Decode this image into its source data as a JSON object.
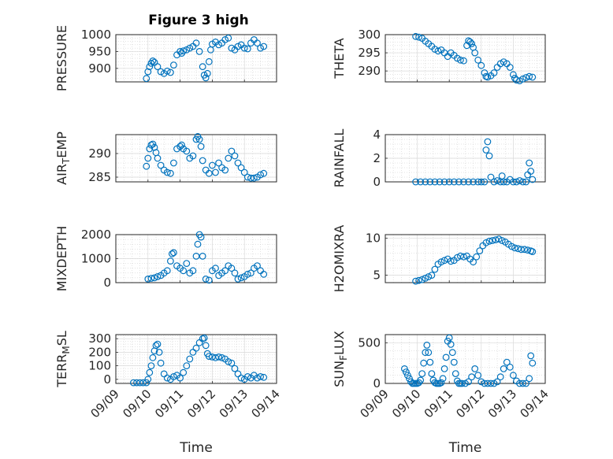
{
  "figure_title": "Figure 3 high",
  "chart_data": [
    {
      "id": "pressure",
      "type": "scatter",
      "title": "Figure 3 high",
      "ylabel": "PRESSURE",
      "xlabel": "",
      "xlim": [
        0,
        5
      ],
      "ylim": [
        860,
        1000
      ],
      "yticks": [
        900,
        950,
        1000
      ],
      "ytick_labels": [
        "900",
        "950",
        "1000"
      ],
      "x": [
        0.95,
        1.0,
        1.05,
        1.1,
        1.15,
        1.2,
        1.3,
        1.4,
        1.5,
        1.6,
        1.7,
        1.8,
        1.9,
        2.0,
        2.05,
        2.1,
        2.2,
        2.3,
        2.4,
        2.5,
        2.6,
        2.7,
        2.75,
        2.8,
        2.85,
        2.9,
        2.95,
        3.0,
        3.1,
        3.2,
        3.3,
        3.4,
        3.5,
        3.6,
        3.7,
        3.8,
        3.9,
        4.0,
        4.1,
        4.2,
        4.3,
        4.4,
        4.5,
        4.6
      ],
      "y": [
        870,
        890,
        905,
        915,
        922,
        918,
        905,
        890,
        885,
        892,
        888,
        910,
        940,
        950,
        945,
        952,
        955,
        960,
        965,
        975,
        950,
        905,
        880,
        872,
        885,
        920,
        955,
        972,
        978,
        970,
        975,
        985,
        990,
        960,
        955,
        965,
        970,
        960,
        958,
        975,
        985,
        975,
        960,
        965
      ]
    },
    {
      "id": "theta",
      "type": "scatter",
      "title": "",
      "ylabel": "THETA",
      "xlabel": "",
      "xlim": [
        0,
        5
      ],
      "ylim": [
        287,
        300
      ],
      "yticks": [
        290,
        295,
        300
      ],
      "ytick_labels": [
        "290",
        "295",
        "300"
      ],
      "x": [
        0.95,
        1.05,
        1.15,
        1.25,
        1.35,
        1.45,
        1.55,
        1.65,
        1.75,
        1.85,
        1.95,
        2.05,
        2.15,
        2.25,
        2.35,
        2.45,
        2.55,
        2.6,
        2.65,
        2.7,
        2.75,
        2.8,
        2.9,
        3.0,
        3.1,
        3.15,
        3.2,
        3.3,
        3.4,
        3.5,
        3.6,
        3.7,
        3.8,
        3.9,
        4.0,
        4.05,
        4.1,
        4.2,
        4.3,
        4.4,
        4.5,
        4.6
      ],
      "y": [
        299.5,
        299.3,
        299,
        298.2,
        297.5,
        296.8,
        296,
        295.5,
        295.8,
        295,
        294,
        295,
        294.3,
        293.5,
        293,
        292.8,
        297,
        298.3,
        298,
        297.5,
        296.5,
        295,
        293,
        291.5,
        289.5,
        288.5,
        288.3,
        288.7,
        289.5,
        291,
        292,
        292.5,
        292,
        291,
        289,
        288,
        287.5,
        287.3,
        287.8,
        288.2,
        288.5,
        288.3
      ]
    },
    {
      "id": "air_temp",
      "type": "scatter",
      "title": "",
      "ylabel": "AIR_TEMP",
      "xlabel": "",
      "xlim": [
        0,
        5
      ],
      "ylim": [
        284,
        294
      ],
      "yticks": [
        285,
        290
      ],
      "ytick_labels": [
        "285",
        "290"
      ],
      "x": [
        0.95,
        1.0,
        1.05,
        1.1,
        1.15,
        1.2,
        1.25,
        1.3,
        1.4,
        1.5,
        1.6,
        1.7,
        1.8,
        1.9,
        2.0,
        2.05,
        2.1,
        2.2,
        2.3,
        2.4,
        2.5,
        2.55,
        2.6,
        2.65,
        2.7,
        2.8,
        2.9,
        3.0,
        3.1,
        3.2,
        3.3,
        3.4,
        3.5,
        3.6,
        3.7,
        3.8,
        3.9,
        4.0,
        4.1,
        4.2,
        4.3,
        4.4,
        4.5,
        4.6
      ],
      "y": [
        287.3,
        289,
        291,
        291.8,
        292,
        291.3,
        290.2,
        289,
        287.5,
        286.5,
        286,
        285.8,
        288,
        291,
        291.5,
        291.8,
        291,
        290.5,
        289,
        289.5,
        293,
        293.6,
        293,
        291.5,
        288.5,
        286.5,
        285.8,
        287.5,
        286,
        288,
        287,
        286.5,
        289,
        290.5,
        289.5,
        288,
        287,
        286,
        285,
        284.8,
        284.8,
        285,
        285.5,
        285.8
      ]
    },
    {
      "id": "rainfall",
      "type": "scatter",
      "title": "",
      "ylabel": "RAINFALL",
      "xlabel": "",
      "xlim": [
        0,
        5
      ],
      "ylim": [
        0,
        4
      ],
      "yticks": [
        0,
        2,
        4
      ],
      "ytick_labels": [
        "0",
        "2",
        "4"
      ],
      "x": [
        0.95,
        1.1,
        1.25,
        1.4,
        1.55,
        1.7,
        1.85,
        2.0,
        2.15,
        2.3,
        2.45,
        2.6,
        2.75,
        2.9,
        3.0,
        3.1,
        3.15,
        3.2,
        3.25,
        3.3,
        3.4,
        3.5,
        3.6,
        3.65,
        3.7,
        3.8,
        3.9,
        4.0,
        4.1,
        4.2,
        4.3,
        4.4,
        4.45,
        4.5,
        4.55,
        4.6
      ],
      "y": [
        0,
        0,
        0,
        0,
        0,
        0,
        0,
        0,
        0,
        0,
        0,
        0,
        0,
        0,
        0,
        0,
        2.7,
        3.4,
        2.2,
        0.4,
        0,
        0.1,
        0,
        0.5,
        0,
        0,
        0.2,
        0,
        0,
        0.1,
        0,
        0,
        0.6,
        1.6,
        0.9,
        0.2
      ]
    },
    {
      "id": "mixdepth",
      "type": "scatter",
      "title": "",
      "ylabel": "MIXDEPTH",
      "xlabel": "",
      "xlim": [
        0,
        5
      ],
      "ylim": [
        0,
        2000
      ],
      "yticks": [
        0,
        1000,
        2000
      ],
      "ytick_labels": [
        "0",
        "1000",
        "2000"
      ],
      "x": [
        1.0,
        1.1,
        1.2,
        1.3,
        1.4,
        1.5,
        1.6,
        1.7,
        1.75,
        1.8,
        1.9,
        2.0,
        2.1,
        2.2,
        2.3,
        2.4,
        2.5,
        2.55,
        2.6,
        2.65,
        2.7,
        2.8,
        2.9,
        3.0,
        3.1,
        3.2,
        3.3,
        3.4,
        3.5,
        3.6,
        3.7,
        3.8,
        3.9,
        4.0,
        4.1,
        4.2,
        4.3,
        4.4,
        4.5,
        4.6
      ],
      "y": [
        150,
        180,
        200,
        250,
        300,
        400,
        500,
        900,
        1200,
        1250,
        700,
        600,
        500,
        800,
        400,
        500,
        1100,
        1600,
        2000,
        1900,
        1100,
        150,
        100,
        500,
        600,
        300,
        400,
        500,
        700,
        600,
        400,
        150,
        200,
        250,
        350,
        400,
        600,
        700,
        500,
        350
      ]
    },
    {
      "id": "h2omixra",
      "type": "scatter",
      "title": "",
      "ylabel": "H2OMIXRA",
      "xlabel": "",
      "xlim": [
        0,
        5
      ],
      "ylim": [
        4,
        10.5
      ],
      "yticks": [
        5,
        10
      ],
      "ytick_labels": [
        "5",
        "10"
      ],
      "x": [
        0.95,
        1.05,
        1.15,
        1.25,
        1.35,
        1.45,
        1.55,
        1.65,
        1.75,
        1.85,
        1.95,
        2.05,
        2.15,
        2.25,
        2.35,
        2.45,
        2.55,
        2.65,
        2.75,
        2.85,
        2.95,
        3.05,
        3.15,
        3.25,
        3.35,
        3.45,
        3.55,
        3.65,
        3.75,
        3.85,
        3.95,
        4.05,
        4.15,
        4.25,
        4.35,
        4.45,
        4.55,
        4.6
      ],
      "y": [
        4.2,
        4.3,
        4.4,
        4.6,
        4.8,
        5.0,
        5.8,
        6.5,
        6.8,
        7.0,
        7.2,
        6.9,
        7.0,
        7.4,
        7.6,
        7.5,
        7.6,
        7.2,
        6.8,
        7.5,
        8.3,
        9.0,
        9.4,
        9.6,
        9.7,
        9.8,
        9.9,
        9.7,
        9.5,
        9.2,
        8.9,
        8.7,
        8.6,
        8.5,
        8.5,
        8.4,
        8.3,
        8.2
      ]
    },
    {
      "id": "terr_msl",
      "type": "scatter",
      "title": "",
      "ylabel": "TERR_MSL",
      "xlabel": "Time",
      "xlim": [
        0,
        5
      ],
      "ylim": [
        -30,
        330
      ],
      "yticks": [
        0,
        100,
        200,
        300
      ],
      "ytick_labels": [
        "0",
        "100",
        "200",
        "300"
      ],
      "xticks": [
        0,
        1,
        2,
        3,
        4,
        5
      ],
      "xtick_labels": [
        "09/09",
        "09/10",
        "09/11",
        "09/12",
        "09/13",
        "09/14"
      ],
      "x": [
        0.55,
        0.65,
        0.75,
        0.85,
        0.95,
        1.0,
        1.05,
        1.1,
        1.15,
        1.2,
        1.25,
        1.3,
        1.35,
        1.4,
        1.5,
        1.6,
        1.7,
        1.8,
        1.9,
        2.0,
        2.1,
        2.2,
        2.3,
        2.4,
        2.5,
        2.6,
        2.7,
        2.75,
        2.8,
        2.85,
        2.9,
        3.0,
        3.1,
        3.2,
        3.3,
        3.4,
        3.5,
        3.6,
        3.7,
        3.8,
        3.9,
        4.0,
        4.1,
        4.2,
        4.3,
        4.4,
        4.5,
        4.6
      ],
      "y": [
        -25,
        -25,
        -25,
        -25,
        -25,
        0,
        50,
        100,
        160,
        210,
        250,
        260,
        200,
        120,
        40,
        10,
        0,
        20,
        30,
        10,
        50,
        100,
        150,
        200,
        230,
        270,
        300,
        305,
        250,
        190,
        170,
        165,
        160,
        165,
        160,
        150,
        130,
        120,
        80,
        40,
        10,
        0,
        20,
        10,
        30,
        10,
        20,
        15
      ]
    },
    {
      "id": "sun_flux",
      "type": "scatter",
      "title": "",
      "ylabel": "SUN_FLUX",
      "xlabel": "Time",
      "xlim": [
        0,
        5
      ],
      "ylim": [
        0,
        600
      ],
      "yticks": [
        0,
        500
      ],
      "ytick_labels": [
        "0",
        "500"
      ],
      "xticks": [
        0,
        1,
        2,
        3,
        4,
        5
      ],
      "xtick_labels": [
        "09/09",
        "09/10",
        "09/11",
        "09/12",
        "09/13",
        "09/14"
      ],
      "x": [
        0.6,
        0.65,
        0.7,
        0.75,
        0.8,
        0.85,
        0.9,
        0.95,
        1.0,
        1.05,
        1.1,
        1.15,
        1.2,
        1.25,
        1.3,
        1.35,
        1.4,
        1.45,
        1.5,
        1.55,
        1.6,
        1.65,
        1.7,
        1.75,
        1.8,
        1.85,
        1.9,
        1.95,
        2.0,
        2.05,
        2.1,
        2.15,
        2.2,
        2.25,
        2.3,
        2.35,
        2.4,
        2.5,
        2.6,
        2.7,
        2.8,
        2.9,
        3.0,
        3.1,
        3.2,
        3.3,
        3.4,
        3.5,
        3.6,
        3.7,
        3.8,
        3.9,
        4.0,
        4.1,
        4.2,
        4.3,
        4.4,
        4.5,
        4.55,
        4.6
      ],
      "y": [
        180,
        140,
        100,
        60,
        20,
        0,
        0,
        0,
        0,
        10,
        40,
        120,
        250,
        380,
        470,
        380,
        260,
        120,
        40,
        10,
        0,
        0,
        0,
        10,
        60,
        180,
        320,
        520,
        560,
        480,
        380,
        260,
        120,
        30,
        0,
        0,
        0,
        0,
        20,
        80,
        180,
        100,
        20,
        0,
        0,
        0,
        0,
        20,
        80,
        180,
        260,
        200,
        100,
        30,
        0,
        0,
        0,
        60,
        340,
        250
      ]
    }
  ]
}
